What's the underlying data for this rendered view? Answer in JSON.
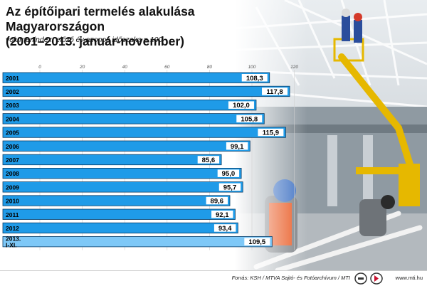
{
  "header": {
    "title_line1": "Az építőipari termelés alakulása Magyarországon",
    "title_line2": "(2001–2013. január-november)",
    "subtitle": "volumenindex, előző év azonos időszaka = 100"
  },
  "chart_data": {
    "type": "bar",
    "orientation": "horizontal",
    "categories": [
      "2001",
      "2002",
      "2003",
      "2004",
      "2005",
      "2006",
      "2007",
      "2008",
      "2009",
      "2010",
      "2011",
      "2012",
      "2013.\nI-XI."
    ],
    "values": [
      108.3,
      117.8,
      102.0,
      105.8,
      115.9,
      99.1,
      85.6,
      95.0,
      95.7,
      89.6,
      92.1,
      93.4,
      109.5
    ],
    "value_labels": [
      "108,3",
      "117,8",
      "102,0",
      "105,8",
      "115,9",
      "99,1",
      "85,6",
      "95,0",
      "95,7",
      "89,6",
      "92,1",
      "93,4",
      "109,5"
    ],
    "highlight_last": true,
    "xlim": [
      0,
      120
    ],
    "xticks": [
      "0",
      "20",
      "40",
      "60",
      "80",
      "100",
      "120"
    ],
    "ylabel": "",
    "xlabel": "",
    "colors": {
      "bar": "#1f9be8",
      "bar_highlight": "#7ec8f7",
      "label_box": "#ffffff"
    }
  },
  "footer": {
    "source": "Forrás: KSH / MTVA Sajtó- és Fotóarchívum / MTI",
    "site": "www.mti.hu"
  },
  "icons": [
    "mti-logo-icon",
    "mtva-logo-icon"
  ]
}
